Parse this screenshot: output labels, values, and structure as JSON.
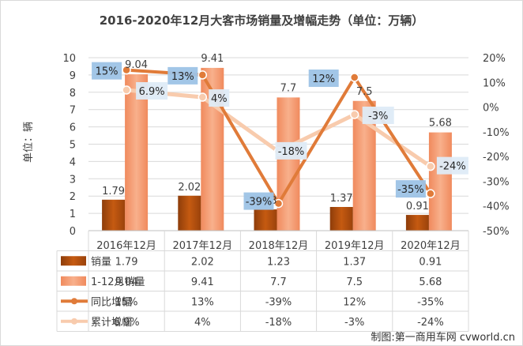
{
  "chart_data": {
    "type": "bar+line",
    "title": "2016-2020年12月大客市场销量及增幅走势（单位：万辆）",
    "ylabel": "单位：辆",
    "ylim": [
      0,
      10
    ],
    "y2lim": [
      -50,
      20
    ],
    "y_ticks": [
      "0",
      "1",
      "2",
      "3",
      "4",
      "5",
      "6",
      "7",
      "8",
      "9",
      "10"
    ],
    "y2_ticks": [
      "20%",
      "10%",
      "0%",
      "-10%",
      "-20%",
      "-30%",
      "-40%",
      "-50%"
    ],
    "categories": [
      "2016年12月",
      "2017年12月",
      "2018年12月",
      "2019年12月",
      "2020年12月"
    ],
    "series": [
      {
        "name": "销量",
        "kind": "bar",
        "axis": "left",
        "values": [
          1.79,
          2.02,
          1.23,
          1.37,
          0.91
        ],
        "labels": [
          "1.79",
          "2.02",
          "1.23",
          "1.37",
          "0.91"
        ],
        "color": "#C55A11"
      },
      {
        "name": "1-12月销量",
        "kind": "bar",
        "axis": "left",
        "values": [
          9.04,
          9.41,
          7.7,
          7.5,
          5.68
        ],
        "labels": [
          "9.04",
          "9.41",
          "7.7",
          "7.5",
          "5.68"
        ],
        "color": "#F4A582"
      },
      {
        "name": "同比增幅",
        "kind": "line",
        "axis": "right",
        "values": [
          15,
          13,
          -39,
          12,
          -35
        ],
        "labels": [
          "15%",
          "13%",
          "-39%",
          "12%",
          "-35%"
        ],
        "color": "#E07B39"
      },
      {
        "name": "累计增幅",
        "kind": "line",
        "axis": "right",
        "values": [
          6.9,
          4,
          -18,
          -3,
          -24
        ],
        "labels": [
          "6.9%",
          "4%",
          "-18%",
          "-3%",
          "-24%"
        ],
        "color": "#F8CBAD"
      }
    ],
    "grid": true,
    "legend": "data-table-below"
  },
  "watermark": "制图:第一商用车网 cvworld.cn"
}
